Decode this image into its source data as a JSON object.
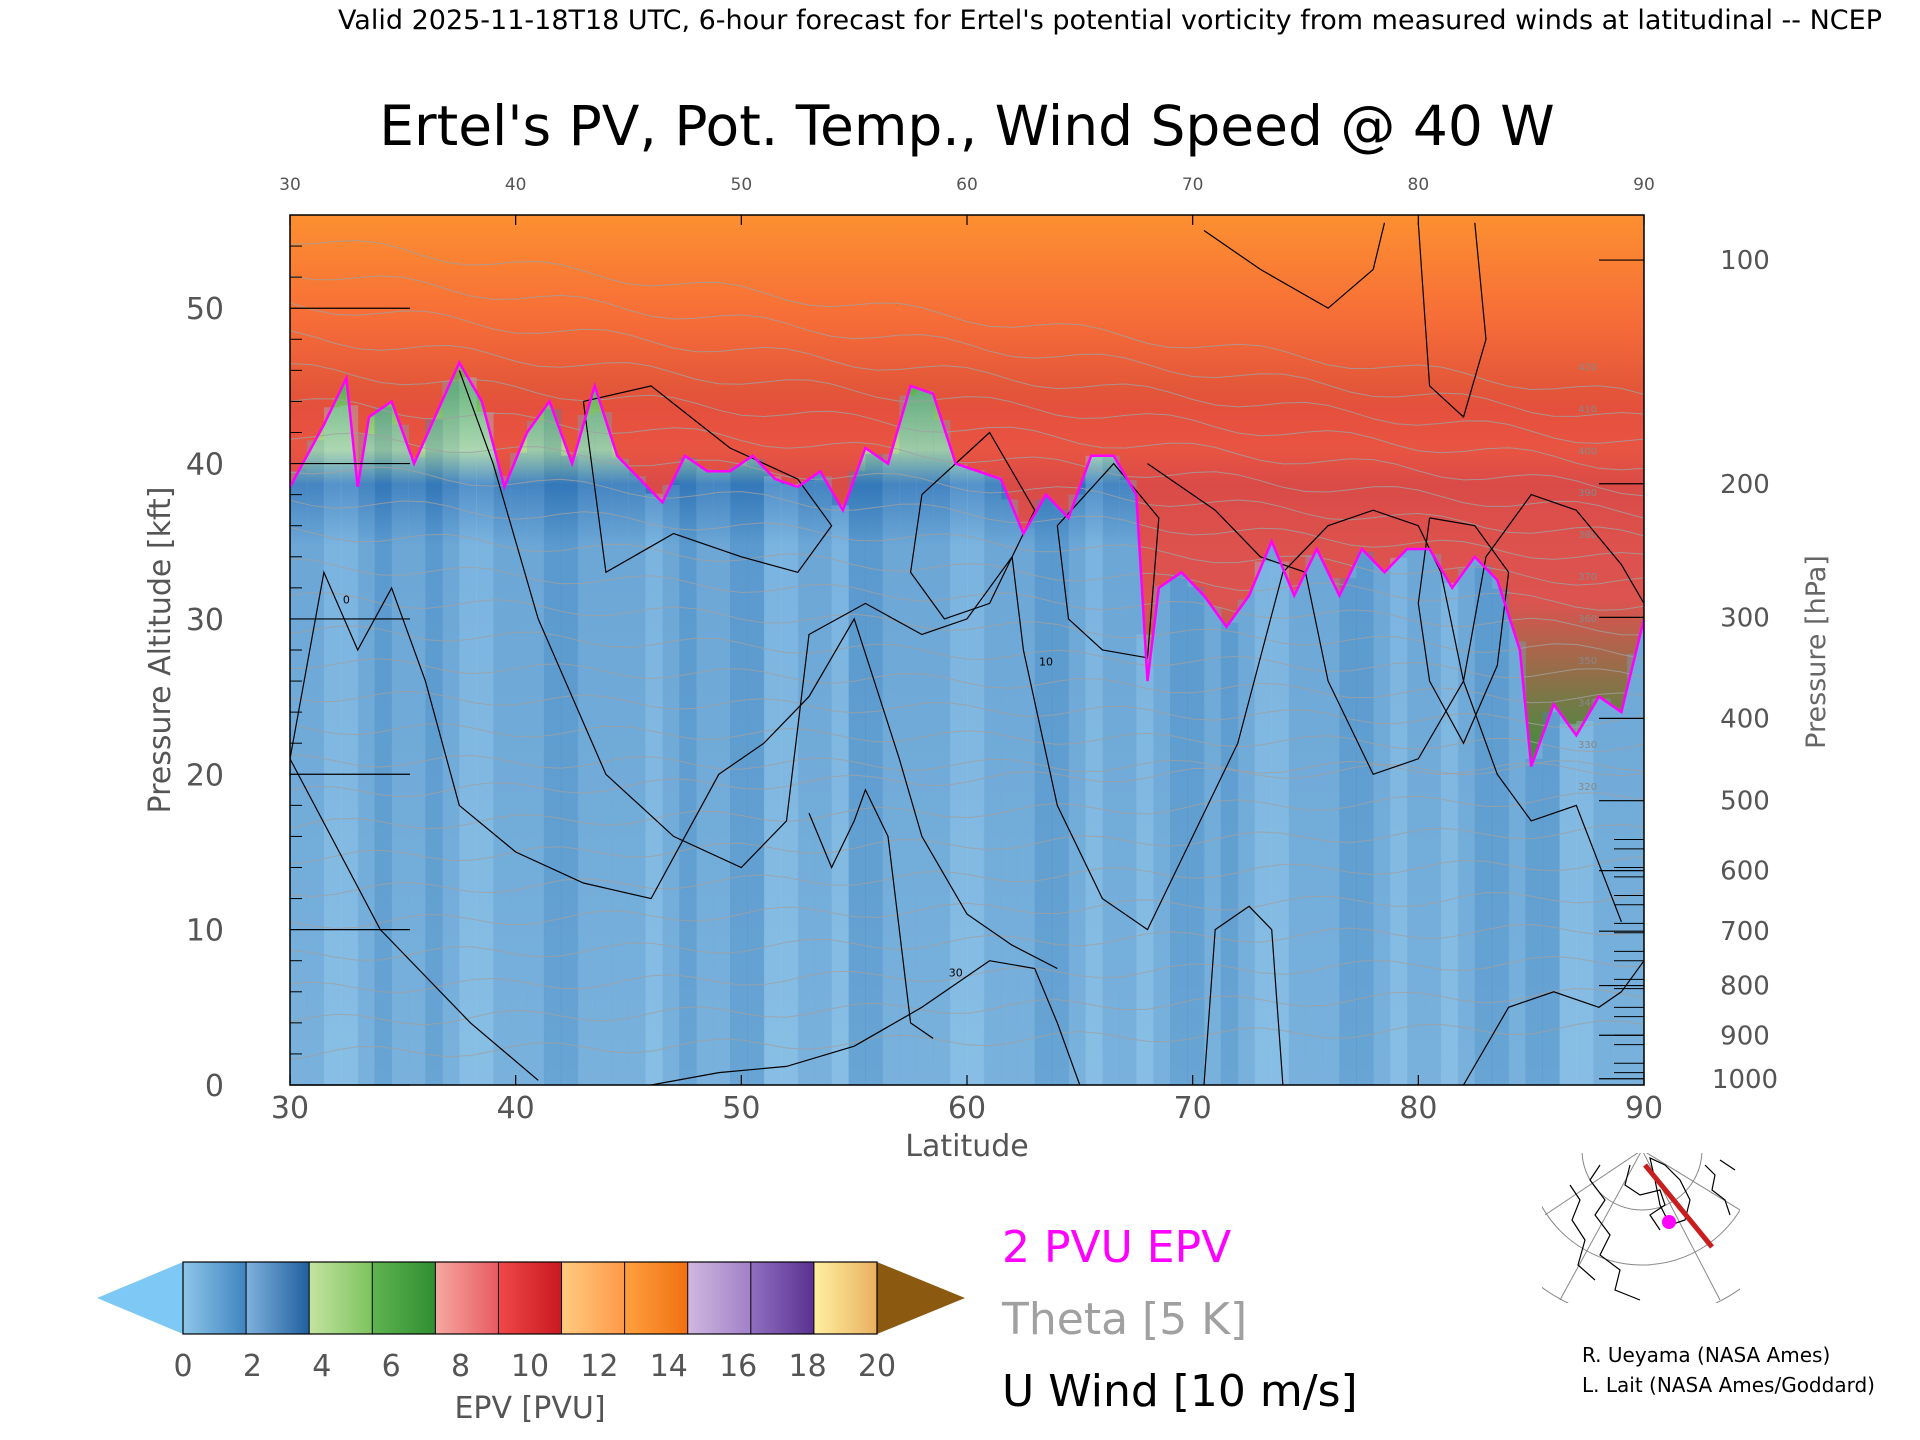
{
  "header": "Valid 2025-11-18T18 UTC, 6-hour forecast for Ertel's potential vorticity from measured winds at latitudinal -- NCEP",
  "credits": [
    "R. Ueyama (NASA Ames)",
    "L. Lait (NASA Ames/Goddard)"
  ],
  "chart_data": {
    "type": "heatmap",
    "title": "Ertel's PV, Pot. Temp., Wind Speed @ 40 W",
    "xlabel": "Latitude",
    "ylabel": "Pressure Altitude [kft]",
    "y2label": "Pressure [hPa]",
    "xlim": [
      30,
      90
    ],
    "ylim": [
      0,
      56
    ],
    "x_ticks": [
      30,
      40,
      50,
      60,
      70,
      80,
      90
    ],
    "y_ticks": [
      0,
      10,
      20,
      30,
      40,
      50
    ],
    "pressure_ticks": [
      {
        "hpa": 100,
        "kft": 53.1
      },
      {
        "hpa": 200,
        "kft": 38.7
      },
      {
        "hpa": 300,
        "kft": 30.1
      },
      {
        "hpa": 400,
        "kft": 23.6
      },
      {
        "hpa": 500,
        "kft": 18.3
      },
      {
        "hpa": 600,
        "kft": 13.8
      },
      {
        "hpa": 700,
        "kft": 9.9
      },
      {
        "hpa": 800,
        "kft": 6.4
      },
      {
        "hpa": 900,
        "kft": 3.2
      },
      {
        "hpa": 1000,
        "kft": 0.4
      }
    ],
    "pv_colorbar": {
      "label": "EPV [PVU]",
      "tick_labels": [
        0,
        2,
        4,
        6,
        8,
        10,
        12,
        14,
        16,
        18,
        20
      ],
      "under_color": "#7dc8f4",
      "over_color": "#8b5a10",
      "bins": [
        [
          "#8ec6e8",
          "#3f84c0"
        ],
        [
          "#7fb2dc",
          "#1f5fa0"
        ],
        [
          "#c4e3a0",
          "#7cc35e"
        ],
        [
          "#60b450",
          "#2e8e30"
        ],
        [
          "#f5a8a0",
          "#e85a60"
        ],
        [
          "#f04848",
          "#c81820"
        ],
        [
          "#ffcc80",
          "#ff9848"
        ],
        [
          "#ffa040",
          "#f07010"
        ],
        [
          "#d0b8e0",
          "#a080c8"
        ],
        [
          "#9070c0",
          "#5a3090"
        ],
        [
          "#fff0a0",
          "#e8b060"
        ]
      ]
    },
    "tropopause_2pvu": [
      [
        30,
        38.5
      ],
      [
        31.5,
        42.5
      ],
      [
        32.5,
        45.5
      ],
      [
        33,
        38.5
      ],
      [
        33.5,
        43
      ],
      [
        34.5,
        44
      ],
      [
        35.5,
        40
      ],
      [
        37.5,
        46.5
      ],
      [
        38.5,
        44
      ],
      [
        39.5,
        38.5
      ],
      [
        40.5,
        42
      ],
      [
        41.5,
        44
      ],
      [
        42.5,
        40
      ],
      [
        43.5,
        45
      ],
      [
        44.5,
        40.5
      ],
      [
        46.5,
        37.5
      ],
      [
        47.5,
        40.5
      ],
      [
        48.5,
        39.5
      ],
      [
        49.5,
        39.5
      ],
      [
        50.5,
        40.5
      ],
      [
        51.5,
        39
      ],
      [
        52.5,
        38.5
      ],
      [
        53.5,
        39.5
      ],
      [
        54.5,
        37
      ],
      [
        55.5,
        41
      ],
      [
        56.5,
        40
      ],
      [
        57.5,
        45
      ],
      [
        58.5,
        44.5
      ],
      [
        59.5,
        40
      ],
      [
        60.5,
        39.5
      ],
      [
        61.5,
        39
      ],
      [
        62.5,
        35.5
      ],
      [
        63.5,
        38
      ],
      [
        64.5,
        36.5
      ],
      [
        65.5,
        40.5
      ],
      [
        66.5,
        40.5
      ],
      [
        67.5,
        38
      ],
      [
        68,
        26
      ],
      [
        68.5,
        32
      ],
      [
        69.5,
        33
      ],
      [
        70.5,
        31.5
      ],
      [
        71.5,
        29.5
      ],
      [
        72.5,
        31.5
      ],
      [
        73.5,
        35
      ],
      [
        74.5,
        31.5
      ],
      [
        75.5,
        34.5
      ],
      [
        76.5,
        31.5
      ],
      [
        77.5,
        34.5
      ],
      [
        78.5,
        33
      ],
      [
        79.5,
        34.5
      ],
      [
        80.5,
        34.5
      ],
      [
        81.5,
        32
      ],
      [
        82.5,
        34
      ],
      [
        83.5,
        32.5
      ],
      [
        84.5,
        28
      ],
      [
        85,
        20.5
      ],
      [
        86,
        24.5
      ],
      [
        87,
        22.5
      ],
      [
        88,
        25
      ],
      [
        89,
        24
      ],
      [
        90,
        30
      ]
    ],
    "theta_label": "Theta [5 K]",
    "theta_contour_labels": [
      "320",
      "330",
      "340",
      "350",
      "360",
      "370",
      "380",
      "390",
      "400",
      "410",
      "420"
    ],
    "uwind_label": "U Wind [10 m/s]",
    "uwind_contour_labels": [
      "0",
      "10",
      "30"
    ],
    "pv_contour_label": "2 PVU EPV",
    "pv_contour_color": "#ff00ff",
    "theta_color": "#a0a0a0",
    "map_marker_color": "#ff00ff",
    "map_section_color": "#c81e1e"
  }
}
